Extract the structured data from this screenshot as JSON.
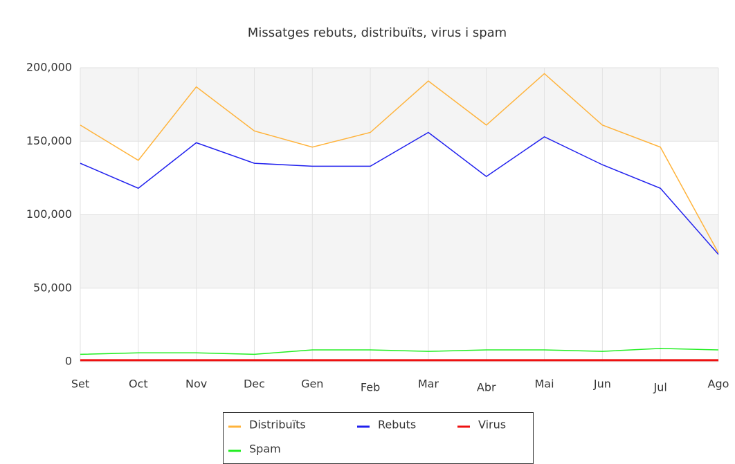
{
  "chart_data": {
    "type": "line",
    "title": "Missatges rebuts, distribuïts, virus i spam",
    "categories": [
      "Set",
      "Oct",
      "Nov",
      "Dec",
      "Gen",
      "Feb",
      "Mar",
      "Abr",
      "Mai",
      "Jun",
      "Jul",
      "Ago"
    ],
    "series": [
      {
        "name": "Distribuïts",
        "color": "#ffb33b",
        "values": [
          161000,
          137000,
          187000,
          157000,
          146000,
          156000,
          191000,
          161000,
          196000,
          161000,
          146000,
          74000
        ]
      },
      {
        "name": "Rebuts",
        "color": "#2020ee",
        "values": [
          135000,
          118000,
          149000,
          135000,
          133000,
          133000,
          156000,
          126000,
          153000,
          134000,
          118000,
          73000
        ]
      },
      {
        "name": "Virus",
        "color": "#ee1111",
        "values": [
          1000,
          1000,
          1000,
          1000,
          1000,
          1000,
          1000,
          1000,
          1000,
          1000,
          1000,
          1000
        ]
      },
      {
        "name": "Spam",
        "color": "#22ee22",
        "values": [
          5000,
          6000,
          6000,
          5000,
          8000,
          8000,
          7000,
          8000,
          8000,
          7000,
          9000,
          8000
        ]
      }
    ],
    "ylim": [
      0,
      200000
    ],
    "yticks": [
      0,
      {
        "value": 50000,
        "label": "50,000"
      },
      {
        "value": 100000,
        "label": "100,000"
      },
      {
        "value": 150000,
        "label": "150,000"
      },
      {
        "value": 200000,
        "label": "200,000"
      }
    ],
    "grid": true
  }
}
